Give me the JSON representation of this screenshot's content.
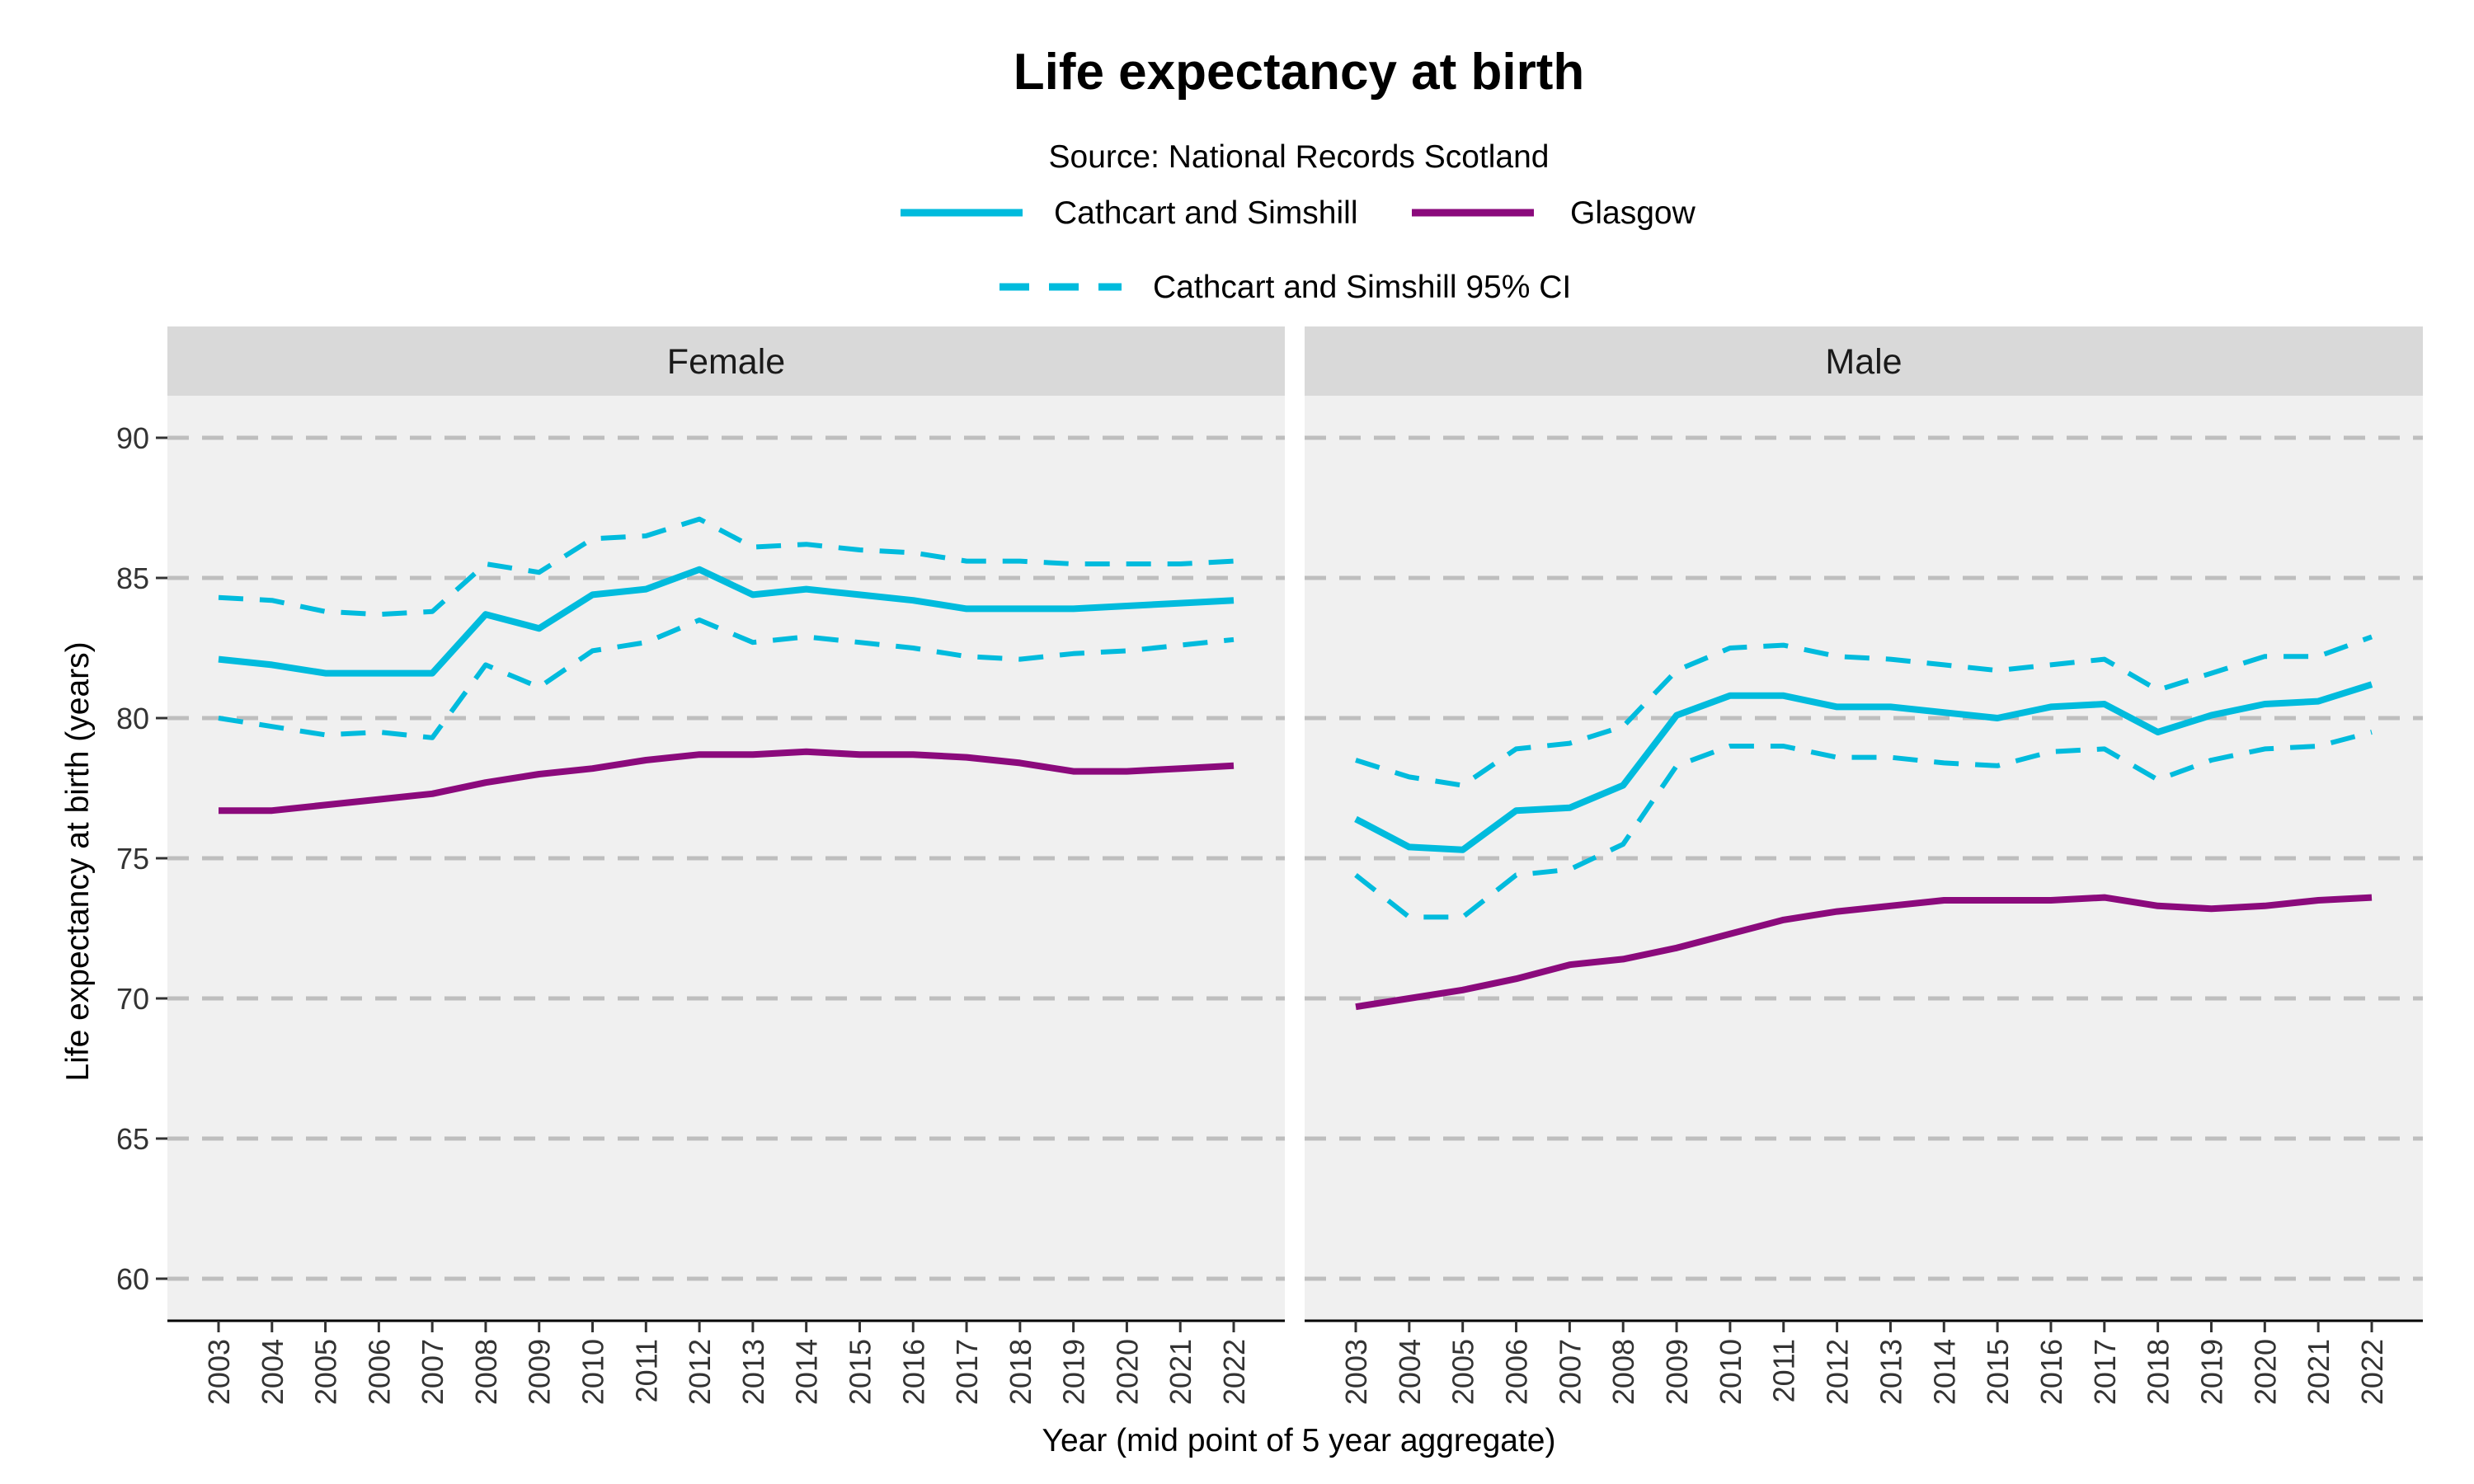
{
  "chart_data": {
    "type": "line",
    "title": "Life expectancy at birth",
    "subtitle": "Source: National Records Scotland",
    "xlabel": "Year (mid point of 5 year aggregate)",
    "ylabel": "Life expectancy at birth (years)",
    "ylim": [
      58.5,
      91.5
    ],
    "yticks": [
      60,
      65,
      70,
      75,
      80,
      85,
      90
    ],
    "grid": true,
    "legend_position": "top",
    "legend": [
      {
        "label": "Cathcart and Simshill",
        "style": "solid",
        "color": "#00BBDD"
      },
      {
        "label": "Glasgow",
        "style": "solid",
        "color": "#8B0A7C"
      },
      {
        "label": "Cathcart and Simshill 95% CI",
        "style": "dashed",
        "color": "#00BBDD"
      }
    ],
    "categories": [
      "2003",
      "2004",
      "2005",
      "2006",
      "2007",
      "2008",
      "2009",
      "2010",
      "2011",
      "2012",
      "2013",
      "2014",
      "2015",
      "2016",
      "2017",
      "2018",
      "2019",
      "2020",
      "2021",
      "2022"
    ],
    "panels": [
      {
        "name": "Female",
        "series": [
          {
            "name": "Cathcart and Simshill",
            "color": "#00BBDD",
            "style": "solid",
            "values": [
              82.1,
              81.9,
              81.6,
              81.6,
              81.6,
              83.7,
              83.2,
              84.4,
              84.6,
              85.3,
              84.4,
              84.6,
              84.4,
              84.2,
              83.9,
              83.9,
              83.9,
              84.0,
              84.1,
              84.2
            ]
          },
          {
            "name": "Cathcart and Simshill 95% CI upper",
            "color": "#00BBDD",
            "style": "dashed",
            "values": [
              84.3,
              84.2,
              83.8,
              83.7,
              83.8,
              85.5,
              85.2,
              86.4,
              86.5,
              87.1,
              86.1,
              86.2,
              86.0,
              85.9,
              85.6,
              85.6,
              85.5,
              85.5,
              85.5,
              85.6
            ]
          },
          {
            "name": "Cathcart and Simshill 95% CI lower",
            "color": "#00BBDD",
            "style": "dashed",
            "values": [
              80.0,
              79.7,
              79.4,
              79.5,
              79.3,
              81.9,
              81.1,
              82.4,
              82.7,
              83.5,
              82.7,
              82.9,
              82.7,
              82.5,
              82.2,
              82.1,
              82.3,
              82.4,
              82.6,
              82.8
            ]
          },
          {
            "name": "Glasgow",
            "color": "#8B0A7C",
            "style": "solid",
            "values": [
              76.7,
              76.7,
              76.9,
              77.1,
              77.3,
              77.7,
              78.0,
              78.2,
              78.5,
              78.7,
              78.7,
              78.8,
              78.7,
              78.7,
              78.6,
              78.4,
              78.1,
              78.1,
              78.2,
              78.3
            ]
          }
        ]
      },
      {
        "name": "Male",
        "series": [
          {
            "name": "Cathcart and Simshill",
            "color": "#00BBDD",
            "style": "solid",
            "values": [
              76.4,
              75.4,
              75.3,
              76.7,
              76.8,
              77.6,
              80.1,
              80.8,
              80.8,
              80.4,
              80.4,
              80.2,
              80.0,
              80.4,
              80.5,
              79.5,
              80.1,
              80.5,
              80.6,
              81.2
            ]
          },
          {
            "name": "Cathcart and Simshill 95% CI upper",
            "color": "#00BBDD",
            "style": "dashed",
            "values": [
              78.5,
              77.9,
              77.6,
              78.9,
              79.1,
              79.7,
              81.7,
              82.5,
              82.6,
              82.2,
              82.1,
              81.9,
              81.7,
              81.9,
              82.1,
              81.0,
              81.6,
              82.2,
              82.2,
              82.9
            ]
          },
          {
            "name": "Cathcart and Simshill 95% CI lower",
            "color": "#00BBDD",
            "style": "dashed",
            "values": [
              74.4,
              72.9,
              72.9,
              74.4,
              74.6,
              75.5,
              78.3,
              79.0,
              79.0,
              78.6,
              78.6,
              78.4,
              78.3,
              78.8,
              78.9,
              77.8,
              78.5,
              78.9,
              79.0,
              79.5
            ]
          },
          {
            "name": "Glasgow",
            "color": "#8B0A7C",
            "style": "solid",
            "values": [
              69.7,
              70.0,
              70.3,
              70.7,
              71.2,
              71.4,
              71.8,
              72.3,
              72.8,
              73.1,
              73.3,
              73.5,
              73.5,
              73.5,
              73.6,
              73.3,
              73.2,
              73.3,
              73.5,
              73.6
            ]
          }
        ]
      }
    ]
  }
}
